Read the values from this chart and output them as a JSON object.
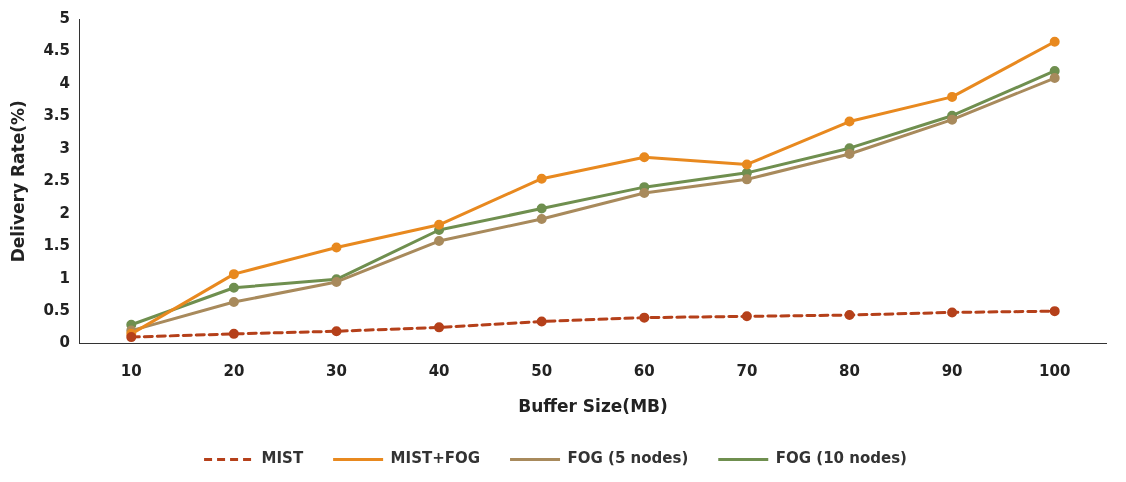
{
  "chart_data": {
    "type": "line",
    "xlabel": "Buffer Size(MB)",
    "ylabel": "Delivery Rate(%)",
    "categories": [
      "10",
      "20",
      "30",
      "40",
      "50",
      "60",
      "70",
      "80",
      "90",
      "100"
    ],
    "ylim": [
      0,
      5
    ],
    "yticks": [
      0,
      0.5,
      1,
      1.5,
      2,
      2.5,
      3,
      3.5,
      4,
      4.5,
      5
    ],
    "grid": false,
    "legend": "bottom",
    "marker": "circle",
    "series": [
      {
        "name": "MIST",
        "color": "#b5401a",
        "line_style": "dashed",
        "values": [
          0.1,
          0.15,
          0.19,
          0.25,
          0.34,
          0.4,
          0.42,
          0.44,
          0.48,
          0.5
        ]
      },
      {
        "name": "MIST+FOG",
        "color": "#e8891f",
        "line_style": "solid",
        "values": [
          0.15,
          1.07,
          1.48,
          1.83,
          2.54,
          2.87,
          2.76,
          3.42,
          3.8,
          4.65
        ]
      },
      {
        "name": "FOG (5 nodes)",
        "color": "#a88a5c",
        "line_style": "solid",
        "values": [
          0.2,
          0.64,
          0.95,
          1.58,
          1.92,
          2.32,
          2.53,
          2.92,
          3.45,
          4.09
        ]
      },
      {
        "name": "FOG (10 nodes)",
        "color": "#6f8f4f",
        "line_style": "solid",
        "values": [
          0.29,
          0.86,
          0.99,
          1.75,
          2.08,
          2.41,
          2.63,
          3.01,
          3.51,
          4.2
        ]
      }
    ]
  }
}
